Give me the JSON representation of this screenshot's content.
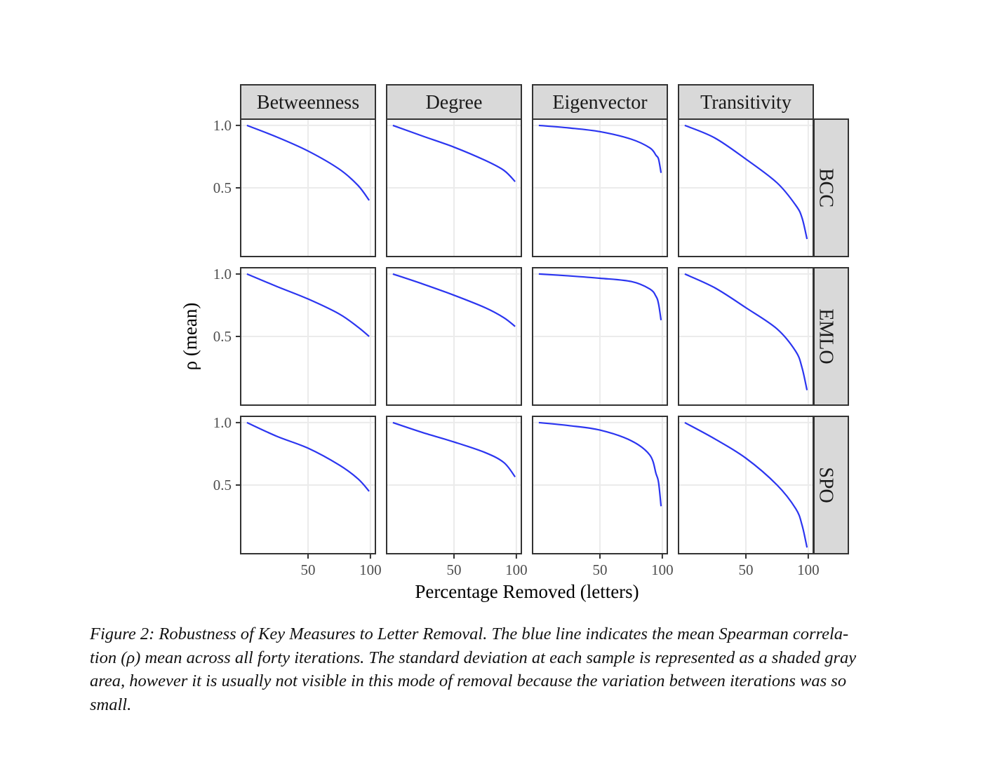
{
  "chart_data": {
    "type": "line",
    "layout": "facet-grid",
    "xlabel": "Percentage Removed (letters)",
    "ylabel": "ρ (mean)",
    "xlim": [
      -4,
      104
    ],
    "ylim": [
      -0.05,
      1.05
    ],
    "x_ticks": [
      50,
      100
    ],
    "x_tick_labels": [
      "50",
      "100"
    ],
    "y_ticks": [
      0.5,
      1.0
    ],
    "y_tick_labels": [
      "0.5",
      "1.0"
    ],
    "grid": true,
    "line_color": "#2b35f0",
    "columns": [
      "Betweenness",
      "Degree",
      "Eigenvector",
      "Transitivity"
    ],
    "rows": [
      "BCC",
      "EMLO",
      "SPO"
    ],
    "panels": [
      {
        "row": "BCC",
        "col": "Betweenness",
        "x": [
          1,
          25,
          50,
          75,
          90,
          99
        ],
        "y": [
          1.0,
          0.907,
          0.795,
          0.65,
          0.52,
          0.4
        ]
      },
      {
        "row": "BCC",
        "col": "Degree",
        "x": [
          1,
          25,
          50,
          75,
          90,
          99
        ],
        "y": [
          1.0,
          0.914,
          0.826,
          0.72,
          0.64,
          0.55
        ]
      },
      {
        "row": "BCC",
        "col": "Eigenvector",
        "x": [
          1,
          25,
          50,
          75,
          90,
          95,
          97,
          99
        ],
        "y": [
          1.0,
          0.98,
          0.95,
          0.89,
          0.82,
          0.76,
          0.73,
          0.62
        ]
      },
      {
        "row": "BCC",
        "col": "Transitivity",
        "x": [
          1,
          25,
          50,
          75,
          90,
          95,
          99
        ],
        "y": [
          1.0,
          0.9,
          0.73,
          0.54,
          0.36,
          0.26,
          0.09
        ]
      },
      {
        "row": "EMLO",
        "col": "Betweenness",
        "x": [
          1,
          25,
          50,
          75,
          90,
          99
        ],
        "y": [
          1.0,
          0.9,
          0.8,
          0.68,
          0.575,
          0.5
        ]
      },
      {
        "row": "EMLO",
        "col": "Degree",
        "x": [
          1,
          25,
          50,
          75,
          90,
          99
        ],
        "y": [
          1.0,
          0.92,
          0.83,
          0.73,
          0.65,
          0.58
        ]
      },
      {
        "row": "EMLO",
        "col": "Eigenvector",
        "x": [
          1,
          25,
          50,
          75,
          90,
          95,
          97,
          99
        ],
        "y": [
          1.0,
          0.985,
          0.966,
          0.94,
          0.88,
          0.82,
          0.76,
          0.63
        ]
      },
      {
        "row": "EMLO",
        "col": "Transitivity",
        "x": [
          1,
          25,
          50,
          75,
          90,
          95,
          99
        ],
        "y": [
          1.0,
          0.89,
          0.73,
          0.56,
          0.38,
          0.25,
          0.07
        ]
      },
      {
        "row": "SPO",
        "col": "Betweenness",
        "x": [
          1,
          25,
          50,
          75,
          90,
          99
        ],
        "y": [
          1.0,
          0.89,
          0.795,
          0.66,
          0.55,
          0.45
        ]
      },
      {
        "row": "SPO",
        "col": "Degree",
        "x": [
          1,
          25,
          50,
          75,
          90,
          99
        ],
        "y": [
          1.0,
          0.92,
          0.845,
          0.76,
          0.68,
          0.565
        ]
      },
      {
        "row": "SPO",
        "col": "Eigenvector",
        "x": [
          1,
          25,
          50,
          75,
          90,
          95,
          97,
          99
        ],
        "y": [
          1.0,
          0.976,
          0.94,
          0.855,
          0.74,
          0.59,
          0.52,
          0.33
        ]
      },
      {
        "row": "SPO",
        "col": "Transitivity",
        "x": [
          1,
          25,
          50,
          75,
          90,
          95,
          99
        ],
        "y": [
          1.0,
          0.87,
          0.715,
          0.5,
          0.31,
          0.18,
          0.0
        ]
      }
    ]
  },
  "caption": {
    "lines": [
      "Figure 2:  Robustness of Key Measures to Letter Removal.  The blue line indicates the mean Spearman correla-",
      "tion (ρ) mean across all forty iterations.  The standard deviation at each sample is represented as a shaded gray",
      "area, however it is usually not visible in this mode of removal because the variation between iterations was so",
      "small."
    ]
  }
}
